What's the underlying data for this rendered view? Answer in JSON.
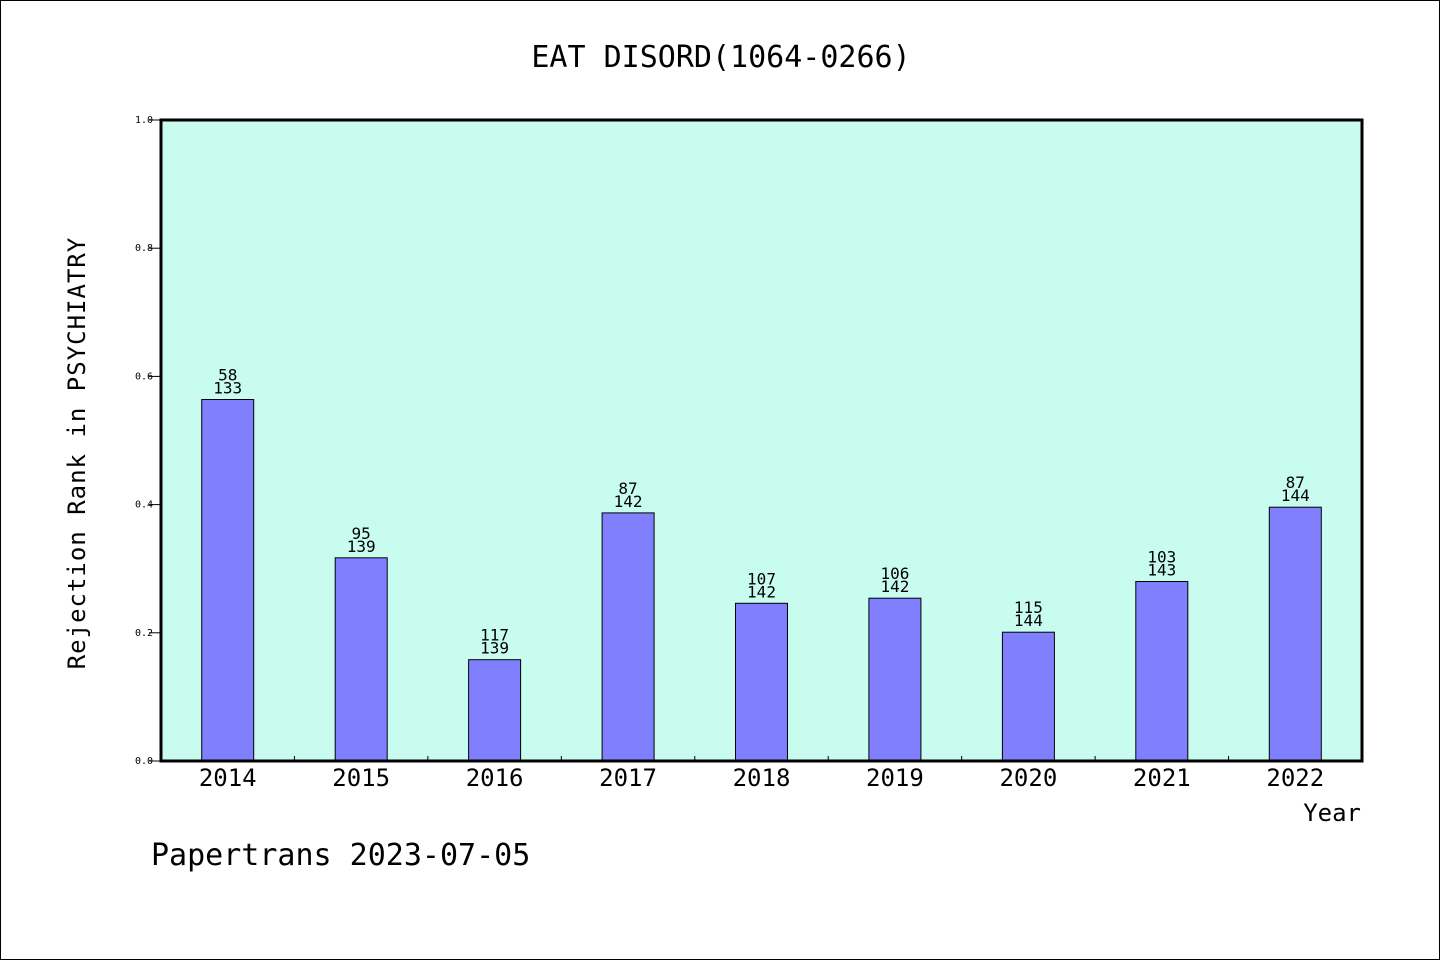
{
  "chart_data": {
    "type": "bar",
    "title": "EAT DISORD(1064-0266)",
    "xlabel": "Year",
    "ylabel": "Rejection Rank in PSYCHIATRY",
    "ylim": [
      0,
      1.0
    ],
    "yticks": [
      "0.0",
      "0.2",
      "0.4",
      "0.6",
      "0.8",
      "1.0"
    ],
    "categories": [
      "2014",
      "2015",
      "2016",
      "2017",
      "2018",
      "2019",
      "2020",
      "2021",
      "2022"
    ],
    "values": [
      0.564,
      0.317,
      0.158,
      0.387,
      0.246,
      0.254,
      0.201,
      0.28,
      0.396
    ],
    "ranks": [
      "58",
      "95",
      "117",
      "87",
      "107",
      "106",
      "115",
      "103",
      "87"
    ],
    "totals": [
      "133",
      "139",
      "139",
      "142",
      "142",
      "142",
      "144",
      "143",
      "144"
    ],
    "colors": {
      "bar": "#8080ff",
      "plot_background": "#c8fcee",
      "axis": "#000000"
    }
  },
  "footer": {
    "text": "Papertrans 2023-07-05"
  }
}
